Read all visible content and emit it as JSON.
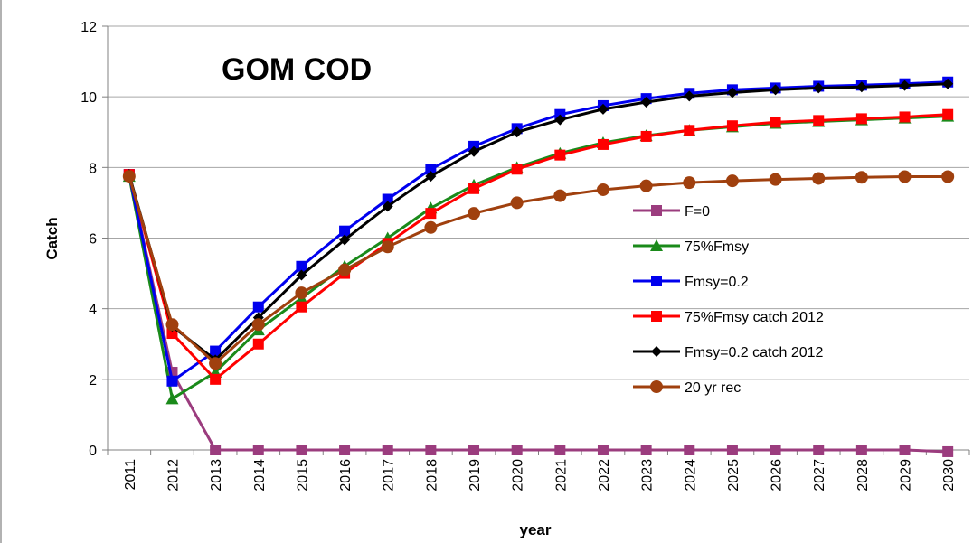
{
  "chart_data": {
    "type": "line",
    "title": "GOM COD",
    "xlabel": "year",
    "ylabel": "Catch",
    "ylim": [
      0,
      12
    ],
    "yticks": [
      0,
      2,
      4,
      6,
      8,
      10,
      12
    ],
    "grid": "horizontal",
    "legend": "center-right",
    "categories": [
      "2011",
      "2012",
      "2013",
      "2014",
      "2015",
      "2016",
      "2017",
      "2018",
      "2019",
      "2020",
      "2021",
      "2022",
      "2023",
      "2024",
      "2025",
      "2026",
      "2027",
      "2028",
      "2029",
      "2030"
    ],
    "series": [
      {
        "name": "F=0",
        "color": "#9b3c7e",
        "marker": "square",
        "values": [
          7.8,
          2.2,
          0,
          0,
          0,
          0,
          0,
          0,
          0,
          0,
          0,
          0,
          0,
          0,
          0,
          0,
          0,
          0,
          0,
          -0.05
        ]
      },
      {
        "name": "75%Fmsy",
        "color": "#1a8a1a",
        "marker": "triangle",
        "values": [
          7.75,
          1.45,
          2.2,
          3.4,
          4.3,
          5.2,
          6.0,
          6.85,
          7.5,
          8.0,
          8.4,
          8.7,
          8.9,
          9.05,
          9.15,
          9.25,
          9.3,
          9.35,
          9.4,
          9.45
        ]
      },
      {
        "name": "Fmsy=0.2",
        "color": "#0000ee",
        "marker": "square",
        "values": [
          7.8,
          1.95,
          2.8,
          4.05,
          5.2,
          6.2,
          7.1,
          7.95,
          8.6,
          9.1,
          9.5,
          9.75,
          9.95,
          10.1,
          10.2,
          10.25,
          10.3,
          10.33,
          10.37,
          10.42
        ]
      },
      {
        "name": "75%Fmsy catch 2012",
        "color": "#ff0000",
        "marker": "square",
        "values": [
          7.8,
          3.3,
          2.0,
          3.0,
          4.05,
          5.0,
          5.85,
          6.7,
          7.4,
          7.95,
          8.35,
          8.65,
          8.88,
          9.05,
          9.18,
          9.28,
          9.33,
          9.38,
          9.43,
          9.5
        ]
      },
      {
        "name": "Fmsy=0.2 catch 2012",
        "color": "#000000",
        "marker": "diamond",
        "values": [
          7.8,
          3.5,
          2.55,
          3.75,
          4.95,
          5.95,
          6.9,
          7.75,
          8.45,
          9.0,
          9.35,
          9.65,
          9.85,
          10.02,
          10.12,
          10.2,
          10.25,
          10.28,
          10.32,
          10.37
        ]
      },
      {
        "name": "20 yr rec",
        "color": "#a0400e",
        "marker": "circle",
        "values": [
          7.75,
          3.55,
          2.45,
          3.55,
          4.45,
          5.1,
          5.75,
          6.3,
          6.7,
          7.0,
          7.2,
          7.37,
          7.48,
          7.57,
          7.62,
          7.66,
          7.69,
          7.72,
          7.74,
          7.74
        ]
      }
    ]
  }
}
